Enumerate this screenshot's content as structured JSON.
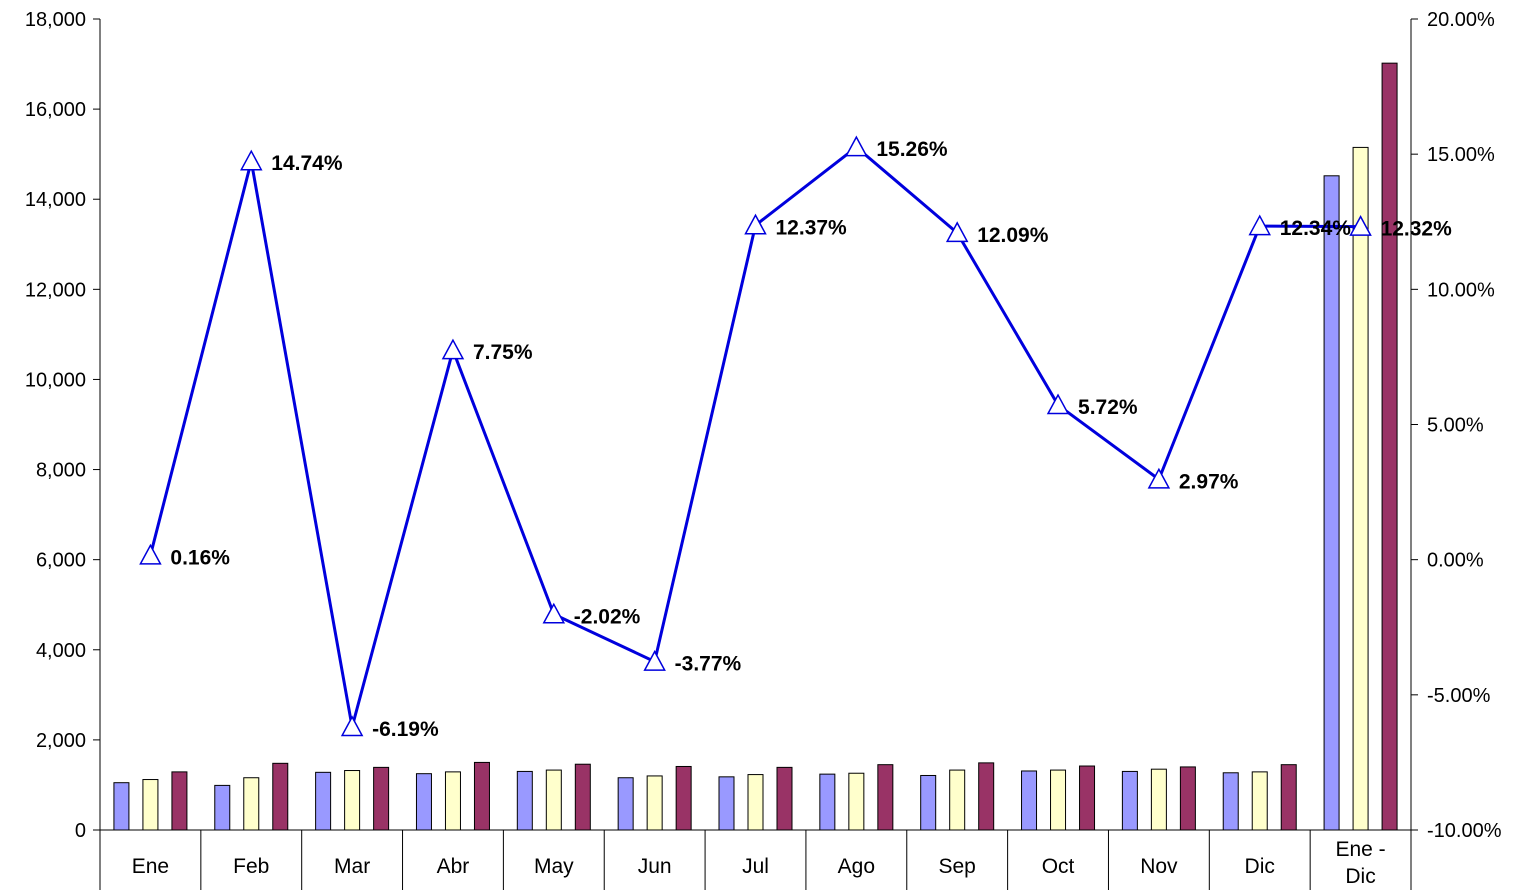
{
  "chart_data": {
    "type": "bar",
    "title": "",
    "categories": [
      "Ene",
      "Feb",
      "Mar",
      "Abr",
      "May",
      "Jun",
      "Jul",
      "Ago",
      "Sep",
      "Oct",
      "Nov",
      "Dic",
      "Ene - Dic"
    ],
    "category_lines": [
      [
        "Ene"
      ],
      [
        "Feb"
      ],
      [
        "Mar"
      ],
      [
        "Abr"
      ],
      [
        "May"
      ],
      [
        "Jun"
      ],
      [
        "Jul"
      ],
      [
        "Ago"
      ],
      [
        "Sep"
      ],
      [
        "Oct"
      ],
      [
        "Nov"
      ],
      [
        "Dic"
      ],
      [
        "Ene -",
        "Dic"
      ]
    ],
    "series": [
      {
        "values": [
          1050,
          990,
          1280,
          1250,
          1300,
          1160,
          1180,
          1240,
          1210,
          1310,
          1300,
          1270,
          14520
        ],
        "color": "#9999ff",
        "axis": "left"
      },
      {
        "values": [
          1120,
          1160,
          1320,
          1290,
          1330,
          1200,
          1230,
          1260,
          1330,
          1330,
          1350,
          1290,
          15150
        ],
        "color": "#ffffcc",
        "axis": "left"
      },
      {
        "values": [
          1290,
          1480,
          1390,
          1500,
          1460,
          1410,
          1390,
          1450,
          1490,
          1420,
          1400,
          1450,
          17020
        ],
        "color": "#993366",
        "axis": "left"
      }
    ],
    "line_series": {
      "values": [
        0.16,
        14.74,
        -6.19,
        7.75,
        -2.02,
        -3.77,
        12.37,
        15.26,
        12.09,
        5.72,
        2.97,
        12.34,
        12.32
      ],
      "labels": [
        "0.16%",
        "14.74%",
        "-6.19%",
        "7.75%",
        "-2.02%",
        "-3.77%",
        "12.37%",
        "15.26%",
        "12.09%",
        "5.72%",
        "2.97%",
        "12.34%",
        "12.32%"
      ],
      "color": "#0000dd",
      "marker": "triangle",
      "axis": "right"
    },
    "y_left": {
      "min": 0,
      "max": 18000,
      "step": 2000,
      "tick_labels": [
        "0",
        "2,000",
        "4,000",
        "6,000",
        "8,000",
        "10,000",
        "12,000",
        "14,000",
        "16,000",
        "18,000"
      ]
    },
    "y_right": {
      "min": -10,
      "max": 20,
      "step": 5,
      "tick_labels": [
        "-10.00%",
        "-5.00%",
        "0.00%",
        "5.00%",
        "10.00%",
        "15.00%",
        "20.00%"
      ]
    },
    "grid": false,
    "legend": "none"
  }
}
